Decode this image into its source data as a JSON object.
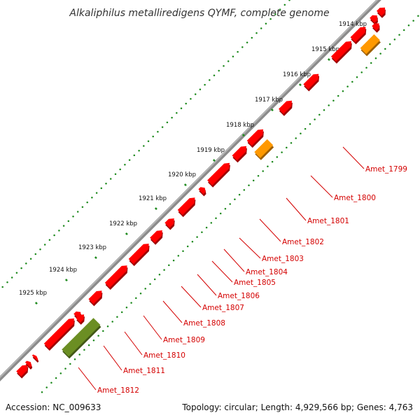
{
  "title": "Alkaliphilus metalliredigens QYMF, complete genome",
  "footer": {
    "accession": "Accession: NC_009633",
    "summary": "Topology: circular; Length: 4,929,566 bp; Genes: 4,763"
  },
  "colors": {
    "backbone": "#8c8c8c",
    "dots": "#1e8a1e",
    "cds": "#ff0000",
    "cds_blue": "#0000ff",
    "cds_orange": "#ff9900",
    "cds_olive": "#6b8e23",
    "label": "#d40000"
  },
  "scale_ticks": [
    "1914 kbp",
    "1915 kbp",
    "1916 kbp",
    "1917 kbp",
    "1918 kbp",
    "1919 kbp",
    "1920 kbp",
    "1921 kbp",
    "1922 kbp",
    "1923 kbp",
    "1924 kbp",
    "1925 kbp"
  ],
  "gene_labels": [
    "Amet_1799",
    "Amet_1800",
    "Amet_1801",
    "Amet_1802",
    "Amet_1803",
    "Amet_1804",
    "Amet_1805",
    "Amet_1806",
    "Amet_1807",
    "Amet_1808",
    "Amet_1809",
    "Amet_1810",
    "Amet_1811",
    "Amet_1812"
  ]
}
